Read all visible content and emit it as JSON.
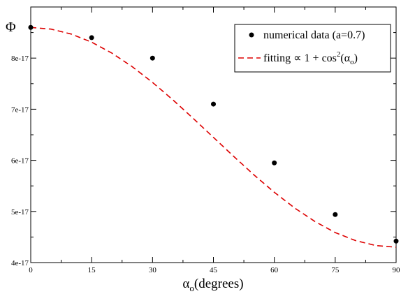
{
  "chart_data": {
    "type": "scatter",
    "title": "",
    "ylabel": "Φ",
    "xlabel": {
      "main": "α",
      "subscript": "o",
      "suffix": "(degrees)"
    },
    "xlim": [
      0,
      90
    ],
    "ylim": [
      4e-17,
      9e-17
    ],
    "x_ticks": [
      0,
      15,
      30,
      45,
      60,
      75,
      90
    ],
    "x_tick_labels": [
      "0",
      "15",
      "30",
      "45",
      "60",
      "75",
      "90"
    ],
    "y_ticks": [
      4e-17,
      5e-17,
      6e-17,
      7e-17,
      8e-17
    ],
    "y_tick_labels": [
      "4e-17",
      "5e-17",
      "6e-17",
      "7e-17",
      "8e-17"
    ],
    "grid": false,
    "legend_position": "top-right",
    "series": [
      {
        "name": "numerical data (a=0.7)",
        "kind": "scatter",
        "color": "#000000",
        "x": [
          0,
          15,
          30,
          45,
          60,
          75,
          90
        ],
        "y": [
          8.6e-17,
          8.4e-17,
          8e-17,
          7.1e-17,
          5.95e-17,
          4.94e-17,
          4.42e-17
        ]
      },
      {
        "name": "fitting ∝ 1 + cos²(αo)",
        "legend_main": "fitting ∝ 1 + cos",
        "legend_sup": "2",
        "legend_open": "(α",
        "legend_sub": "o",
        "legend_close": ")",
        "kind": "line",
        "style": "dashed",
        "color": "#dd0000",
        "formula": "4.3e-17 * (1 + cos^2(x))",
        "x": [
          0,
          5,
          10,
          15,
          20,
          25,
          30,
          35,
          40,
          45,
          50,
          55,
          60,
          65,
          70,
          75,
          80,
          85,
          90
        ],
        "y": [
          8.6e-17,
          8.567e-17,
          8.47e-17,
          8.312e-17,
          8.097e-17,
          7.832e-17,
          7.525e-17,
          7.185e-17,
          6.823e-17,
          6.45e-17,
          6.077e-17,
          5.715e-17,
          5.375e-17,
          5.068e-17,
          4.803e-17,
          4.588e-17,
          4.43e-17,
          4.333e-17,
          4.3e-17
        ]
      }
    ]
  }
}
